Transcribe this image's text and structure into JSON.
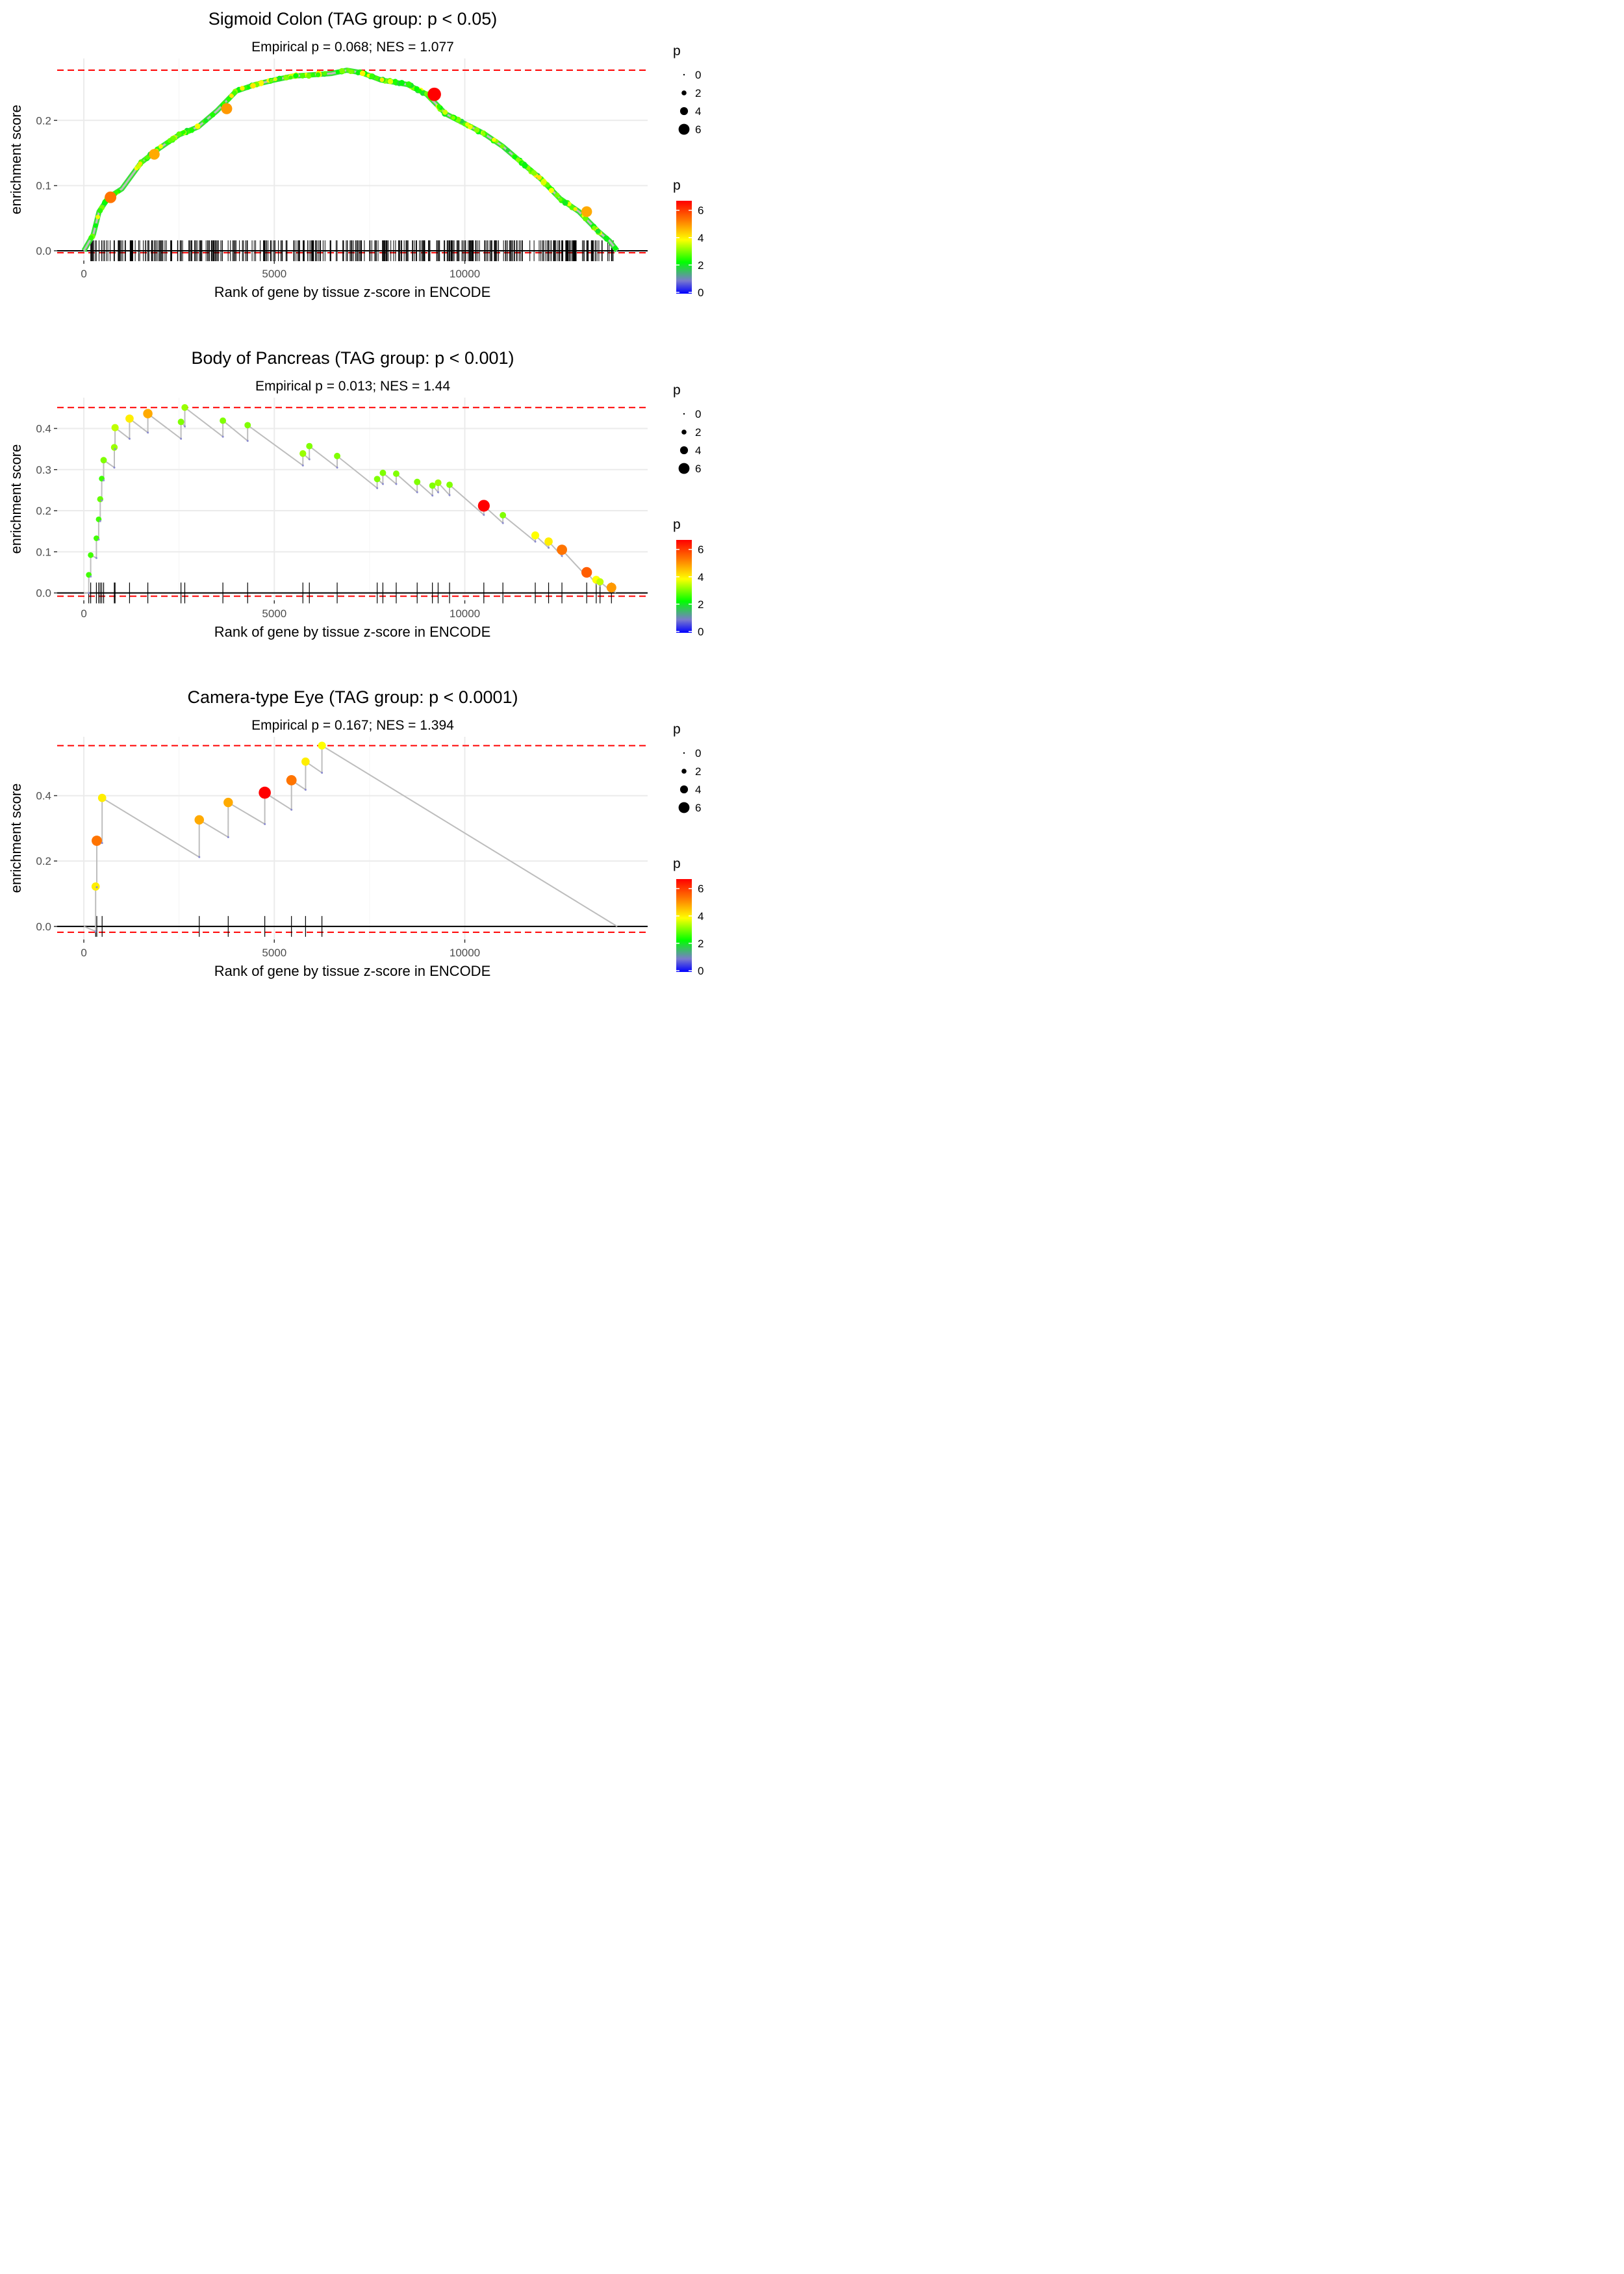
{
  "chart_data": [
    {
      "type": "line",
      "title": "Sigmoid Colon (TAG group: p < 0.05)",
      "subtitle": "Empirical p = 0.068; NES = 1.077",
      "xlabel": "Rank of gene by tissue z-score in ENCODE",
      "ylabel": "enrichment score",
      "xlim": [
        -700,
        14800
      ],
      "ylim": [
        -0.015,
        0.295
      ],
      "x_ticks": [
        0,
        5000,
        10000
      ],
      "x_tick_labels": [
        "0",
        "5000",
        "10000"
      ],
      "y_ticks": [
        0.0,
        0.1,
        0.2
      ],
      "y_tick_labels": [
        "0.0",
        "0.1",
        "0.2"
      ],
      "max_es": 0.277,
      "min_es": -0.003,
      "grid": true,
      "dense": true,
      "rug_density": 420,
      "curve_x": [
        0,
        250,
        400,
        650,
        1000,
        1500,
        2000,
        2500,
        3000,
        3500,
        4000,
        4500,
        5000,
        5500,
        6000,
        6500,
        6900,
        7300,
        7800,
        8500,
        9000,
        9500,
        10000,
        10500,
        11000,
        11500,
        12000,
        12500,
        13000,
        13500,
        13800,
        14000
      ],
      "curve_y": [
        0.0,
        0.025,
        0.06,
        0.082,
        0.095,
        0.135,
        0.158,
        0.178,
        0.19,
        0.215,
        0.245,
        0.255,
        0.262,
        0.268,
        0.27,
        0.272,
        0.277,
        0.273,
        0.262,
        0.255,
        0.24,
        0.21,
        0.195,
        0.18,
        0.16,
        0.135,
        0.11,
        0.08,
        0.06,
        0.03,
        0.015,
        0.0
      ],
      "highlight_points": [
        {
          "x": 700,
          "y": 0.082,
          "p": 5.6
        },
        {
          "x": 1850,
          "y": 0.148,
          "p": 5.0
        },
        {
          "x": 3750,
          "y": 0.218,
          "p": 5.2
        },
        {
          "x": 9200,
          "y": 0.24,
          "p": 6.8
        },
        {
          "x": 13200,
          "y": 0.06,
          "p": 5.0
        }
      ]
    },
    {
      "type": "line",
      "title": "Body of Pancreas (TAG group: p < 0.001)",
      "subtitle": "Empirical p = 0.013; NES = 1.44",
      "xlabel": "Rank of gene by tissue z-score in ENCODE",
      "ylabel": "enrichment score",
      "xlim": [
        -700,
        14800
      ],
      "ylim": [
        -0.018,
        0.475
      ],
      "x_ticks": [
        0,
        5000,
        10000
      ],
      "x_tick_labels": [
        "0",
        "5000",
        "10000"
      ],
      "y_ticks": [
        0.0,
        0.1,
        0.2,
        0.3,
        0.4
      ],
      "y_tick_labels": [
        "0.0",
        "0.1",
        "0.2",
        "0.3",
        "0.4"
      ],
      "max_es": 0.451,
      "min_es": -0.008,
      "grid": true,
      "dense": false,
      "hits": [
        {
          "x": 130,
          "pre": 0.0,
          "es": 0.044,
          "p": 2.5
        },
        {
          "x": 180,
          "pre": 0.04,
          "es": 0.092,
          "p": 2.5
        },
        {
          "x": 330,
          "pre": 0.085,
          "es": 0.133,
          "p": 2.5
        },
        {
          "x": 390,
          "pre": 0.13,
          "es": 0.179,
          "p": 2.5
        },
        {
          "x": 430,
          "pre": 0.175,
          "es": 0.228,
          "p": 2.8
        },
        {
          "x": 470,
          "pre": 0.225,
          "es": 0.278,
          "p": 2.5
        },
        {
          "x": 520,
          "pre": 0.274,
          "es": 0.323,
          "p": 3.0
        },
        {
          "x": 800,
          "pre": 0.305,
          "es": 0.354,
          "p": 3.2
        },
        {
          "x": 820,
          "pre": 0.35,
          "es": 0.402,
          "p": 3.5
        },
        {
          "x": 1200,
          "pre": 0.375,
          "es": 0.424,
          "p": 4.2
        },
        {
          "x": 1680,
          "pre": 0.39,
          "es": 0.436,
          "p": 5.0
        },
        {
          "x": 2550,
          "pre": 0.375,
          "es": 0.416,
          "p": 3.0
        },
        {
          "x": 2650,
          "pre": 0.405,
          "es": 0.451,
          "p": 3.2
        },
        {
          "x": 3650,
          "pre": 0.38,
          "es": 0.419,
          "p": 3.0
        },
        {
          "x": 4300,
          "pre": 0.37,
          "es": 0.408,
          "p": 3.0
        },
        {
          "x": 5750,
          "pre": 0.31,
          "es": 0.339,
          "p": 3.2
        },
        {
          "x": 5920,
          "pre": 0.325,
          "es": 0.357,
          "p": 3.0
        },
        {
          "x": 6650,
          "pre": 0.305,
          "es": 0.333,
          "p": 3.0
        },
        {
          "x": 7700,
          "pre": 0.255,
          "es": 0.277,
          "p": 3.0
        },
        {
          "x": 7850,
          "pre": 0.265,
          "es": 0.292,
          "p": 3.0
        },
        {
          "x": 8200,
          "pre": 0.265,
          "es": 0.29,
          "p": 3.0
        },
        {
          "x": 8750,
          "pre": 0.245,
          "es": 0.27,
          "p": 3.0
        },
        {
          "x": 9150,
          "pre": 0.237,
          "es": 0.261,
          "p": 3.0
        },
        {
          "x": 9300,
          "pre": 0.245,
          "es": 0.268,
          "p": 3.2
        },
        {
          "x": 9600,
          "pre": 0.238,
          "es": 0.263,
          "p": 3.0
        },
        {
          "x": 10500,
          "pre": 0.19,
          "es": 0.212,
          "p": 6.6
        },
        {
          "x": 11000,
          "pre": 0.17,
          "es": 0.189,
          "p": 3.0
        },
        {
          "x": 11850,
          "pre": 0.125,
          "es": 0.14,
          "p": 4.0
        },
        {
          "x": 12200,
          "pre": 0.11,
          "es": 0.125,
          "p": 4.2
        },
        {
          "x": 12550,
          "pre": 0.09,
          "es": 0.105,
          "p": 5.6
        },
        {
          "x": 13200,
          "pre": 0.04,
          "es": 0.05,
          "p": 5.8
        },
        {
          "x": 13450,
          "pre": 0.022,
          "es": 0.032,
          "p": 4.0
        },
        {
          "x": 13550,
          "pre": 0.018,
          "es": 0.027,
          "p": 3.5
        },
        {
          "x": 13850,
          "pre": 0.004,
          "es": 0.013,
          "p": 5.2
        }
      ],
      "end": {
        "x": 13960,
        "es": 0.0
      }
    },
    {
      "type": "line",
      "title": "Camera-type Eye (TAG group: p < 0.0001)",
      "subtitle": "Empirical p = 0.167; NES = 1.394",
      "xlabel": "Rank of gene by tissue z-score in ENCODE",
      "ylabel": "enrichment score",
      "xlim": [
        -700,
        14800
      ],
      "ylim": [
        -0.04,
        0.58
      ],
      "x_ticks": [
        0,
        5000,
        10000
      ],
      "x_tick_labels": [
        "0",
        "5000",
        "10000"
      ],
      "y_ticks": [
        0.0,
        0.2,
        0.4
      ],
      "y_tick_labels": [
        "0.0",
        "0.2",
        "0.4"
      ],
      "max_es": 0.553,
      "min_es": -0.018,
      "grid": true,
      "dense": false,
      "hits": [
        {
          "x": 310,
          "pre": -0.015,
          "es": 0.122,
          "p": 4.2
        },
        {
          "x": 340,
          "pre": 0.12,
          "es": 0.262,
          "p": 5.6
        },
        {
          "x": 480,
          "pre": 0.255,
          "es": 0.393,
          "p": 4.2
        },
        {
          "x": 3030,
          "pre": 0.212,
          "es": 0.326,
          "p": 5.0
        },
        {
          "x": 3790,
          "pre": 0.273,
          "es": 0.379,
          "p": 5.0
        },
        {
          "x": 4750,
          "pre": 0.313,
          "es": 0.409,
          "p": 6.8
        },
        {
          "x": 5450,
          "pre": 0.357,
          "es": 0.447,
          "p": 5.6
        },
        {
          "x": 5820,
          "pre": 0.418,
          "es": 0.504,
          "p": 4.2
        },
        {
          "x": 6250,
          "pre": 0.47,
          "es": 0.553,
          "p": 4.0
        }
      ],
      "end": {
        "x": 14000,
        "es": 0.0
      }
    }
  ],
  "legends": [
    {
      "size_title": "p",
      "size_labels": [
        "0",
        "2",
        "4",
        "6"
      ],
      "color_title": "p",
      "color_labels": [
        "6",
        "4",
        "2",
        "0"
      ]
    },
    {
      "size_title": "p",
      "size_labels": [
        "0",
        "2",
        "4",
        "6"
      ],
      "color_title": "p",
      "color_labels": [
        "6",
        "4",
        "2",
        "0"
      ]
    },
    {
      "size_title": "p",
      "size_labels": [
        "0",
        "2",
        "4",
        "6"
      ],
      "color_title": "p",
      "color_labels": [
        "6",
        "4",
        "2",
        "0"
      ]
    }
  ],
  "colors": {
    "dashed": "#ff0000",
    "curve": "#bdbdbd",
    "grid": "#ebebeb",
    "rug": "#000000",
    "scale": [
      "#0000ff",
      "#7a7acd",
      "#00ff00",
      "#ffff00",
      "#ff8000",
      "#ff0000"
    ]
  }
}
